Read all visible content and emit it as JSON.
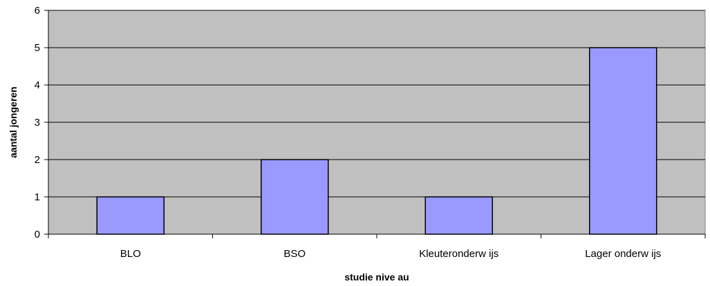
{
  "chart_data": {
    "type": "bar",
    "categories": [
      "BLO",
      "BSO",
      "Kleuteronderw ijs",
      "Lager onderw ijs"
    ],
    "values": [
      1,
      2,
      1,
      5
    ],
    "xlabel": "studie nive au",
    "ylabel": "aantal jongeren",
    "ylim": [
      0,
      6
    ],
    "yticks": [
      0,
      1,
      2,
      3,
      4,
      5,
      6
    ],
    "grid": true,
    "legend": "none",
    "colors": {
      "plot_background": "#c0c0c0",
      "bar_fill": "#9999ff",
      "bar_stroke": "#000000",
      "gridline": "#000000"
    }
  }
}
